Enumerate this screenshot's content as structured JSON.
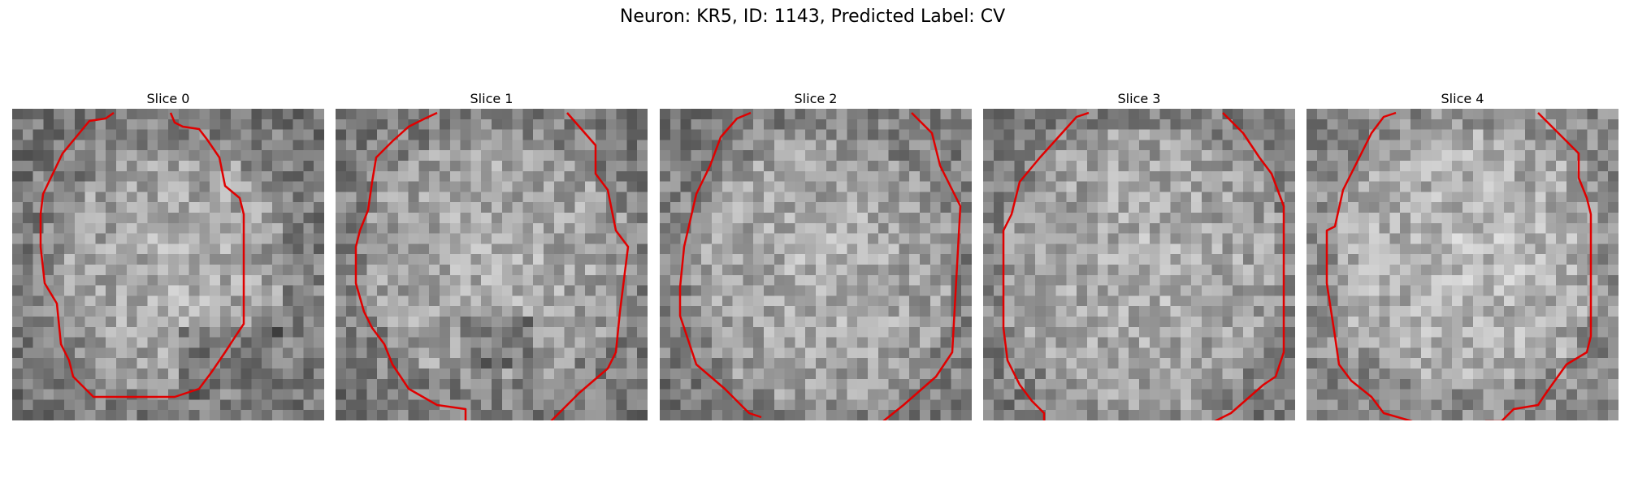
{
  "figure": {
    "title": "Neuron: KR5, ID: 1143, Predicted Label: CV",
    "contour_color": "#e00000",
    "slices": [
      {
        "label": "Slice 0"
      },
      {
        "label": "Slice 1"
      },
      {
        "label": "Slice 2"
      },
      {
        "label": "Slice 3"
      },
      {
        "label": "Slice 4"
      }
    ]
  }
}
